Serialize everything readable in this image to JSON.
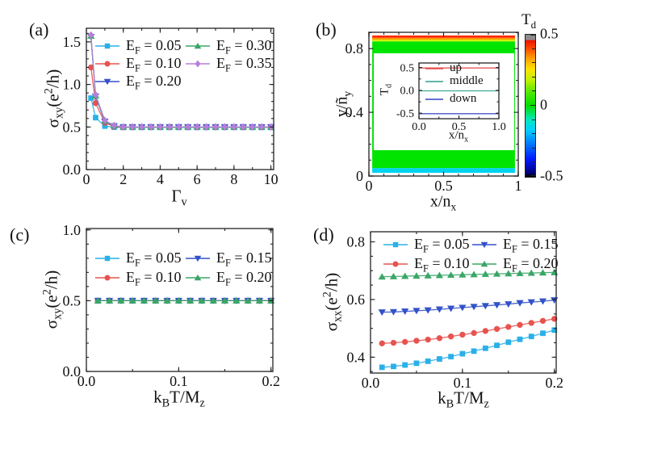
{
  "figure": {
    "background": "#ffffff",
    "panels": [
      {
        "id": "a",
        "letter": "(a)"
      },
      {
        "id": "b",
        "letter": "(b)"
      },
      {
        "id": "c",
        "letter": "(c)"
      },
      {
        "id": "d",
        "letter": "(d)"
      }
    ]
  },
  "chart_data": [
    {
      "id": "a",
      "type": "line",
      "xlabel": "Γ_{v}",
      "ylabel": "σ_{xy}(e^{2}/h)",
      "xlim": [
        0,
        10.15
      ],
      "ylim": [
        0,
        1.66
      ],
      "xticks": {
        "major": [
          0,
          2,
          4,
          6,
          8,
          10
        ],
        "labels": [
          "0",
          "2",
          "4",
          "6",
          "8",
          "10"
        ],
        "minor_step": 1
      },
      "yticks": {
        "major": [
          0,
          0.5,
          1.0,
          1.5
        ],
        "labels": [
          "0.0",
          "0.5",
          "1.0",
          "1.5"
        ],
        "minor_step": 0.1
      },
      "x": [
        0.25,
        0.5,
        1,
        1.5,
        2,
        2.5,
        3,
        3.5,
        4,
        4.5,
        5,
        5.5,
        6,
        6.5,
        7,
        7.5,
        8,
        8.5,
        9,
        9.5,
        10
      ],
      "series": [
        {
          "label": "E_{F} = 0.05",
          "color": "#2ab0e8",
          "marker": "square",
          "values": [
            0.84,
            0.61,
            0.51,
            0.497,
            0.495,
            0.495,
            0.495,
            0.495,
            0.495,
            0.495,
            0.495,
            0.495,
            0.495,
            0.495,
            0.495,
            0.495,
            0.495,
            0.495,
            0.495,
            0.495,
            0.495
          ]
        },
        {
          "label": "E_{F} = 0.10",
          "color": "#e8534f",
          "marker": "circle",
          "values": [
            1.2,
            0.78,
            0.55,
            0.505,
            0.498,
            0.498,
            0.498,
            0.498,
            0.498,
            0.498,
            0.498,
            0.498,
            0.498,
            0.498,
            0.498,
            0.498,
            0.498,
            0.498,
            0.498,
            0.498,
            0.498
          ]
        },
        {
          "label": "E_{F} = 0.20",
          "color": "#3352c8",
          "marker": "tridown",
          "values": [
            1.56,
            0.86,
            0.565,
            0.512,
            0.5,
            0.5,
            0.5,
            0.5,
            0.5,
            0.5,
            0.5,
            0.5,
            0.5,
            0.5,
            0.5,
            0.5,
            0.5,
            0.5,
            0.5,
            0.5,
            0.5
          ]
        },
        {
          "label": "E_{F} = 0.30",
          "color": "#3aa667",
          "marker": "triup",
          "values": [
            1.57,
            0.87,
            0.572,
            0.515,
            0.501,
            0.501,
            0.501,
            0.501,
            0.501,
            0.501,
            0.501,
            0.501,
            0.501,
            0.501,
            0.501,
            0.501,
            0.501,
            0.501,
            0.501,
            0.501,
            0.501
          ]
        },
        {
          "label": "E_{F} = 0.35",
          "color": "#b77fd9",
          "marker": "diamond",
          "values": [
            1.58,
            0.88,
            0.578,
            0.518,
            0.502,
            0.502,
            0.502,
            0.502,
            0.502,
            0.502,
            0.502,
            0.502,
            0.502,
            0.502,
            0.502,
            0.502,
            0.502,
            0.502,
            0.502,
            0.502,
            0.502
          ]
        }
      ],
      "legend_position": "top-inside, two columns"
    },
    {
      "id": "b",
      "type": "heatmap",
      "xlabel": "x/n_{x}",
      "ylabel": "y/ñ_{y}",
      "xlim": [
        0,
        1
      ],
      "ylim": [
        0,
        0.902
      ],
      "xticks": {
        "major": [
          0,
          0.5,
          1
        ],
        "labels": [
          "0",
          "0.5",
          "1"
        ],
        "minor_step": 0.1
      },
      "yticks": {
        "major": [
          0,
          0.4,
          0.8
        ],
        "labels": [
          "0",
          "0.4",
          "0.8"
        ],
        "minor_step": 0.1
      },
      "stripes_x_range": [
        0.022,
        0.978
      ],
      "stripes": [
        {
          "y0": 0.02,
          "y1": 0.05,
          "color": "#00d2f0",
          "meaning": "down edge state, Td ≈ -0.25"
        },
        {
          "y0": 0.05,
          "y1": 0.845,
          "color": "#00e400",
          "meaning": "bulk, Td ≈ 0"
        },
        {
          "y0": 0.845,
          "y1": 0.856,
          "color": "#d0f000",
          "meaning": ""
        },
        {
          "y0": 0.856,
          "y1": 0.868,
          "color": "#ff9800",
          "meaning": ""
        },
        {
          "y0": 0.868,
          "y1": 0.882,
          "color": "#ff2800",
          "meaning": "up edge state, Td ≈ 0.5"
        }
      ],
      "colorbar": {
        "title": "T_{d}",
        "lim": [
          -0.5,
          0.5
        ],
        "ticks": [
          {
            "v": 0.5,
            "label": "0.5"
          },
          {
            "v": 0,
            "label": "0"
          },
          {
            "v": -0.5,
            "label": "-0.5"
          }
        ],
        "minor_step": 0.1,
        "gradient": [
          {
            "pos": 0.0,
            "color": "#000000"
          },
          {
            "pos": 0.03,
            "color": "#00007e"
          },
          {
            "pos": 0.12,
            "color": "#0018ff"
          },
          {
            "pos": 0.24,
            "color": "#0080ff"
          },
          {
            "pos": 0.33,
            "color": "#00d0ff"
          },
          {
            "pos": 0.4,
            "color": "#00e8c0"
          },
          {
            "pos": 0.5,
            "color": "#00dd00"
          },
          {
            "pos": 0.6,
            "color": "#58e800"
          },
          {
            "pos": 0.68,
            "color": "#c0f000"
          },
          {
            "pos": 0.76,
            "color": "#ffe000"
          },
          {
            "pos": 0.84,
            "color": "#ff9800"
          },
          {
            "pos": 0.91,
            "color": "#ff4000"
          },
          {
            "pos": 0.96,
            "color": "#e81400"
          },
          {
            "pos": 0.965,
            "color": "#8c8c8c"
          },
          {
            "pos": 1.0,
            "color": "#8c8c8c"
          }
        ]
      },
      "inset": {
        "type": "line",
        "xlabel": "x/n_{x}",
        "ylabel": "T_{d}",
        "xlim": [
          0,
          1
        ],
        "ylim": [
          -0.62,
          0.6
        ],
        "xticks": {
          "major": [
            0,
            0.5,
            1
          ],
          "labels": [
            "0.0",
            "0.5",
            "1.0"
          ],
          "minor_step": 0.25
        },
        "yticks": {
          "major": [
            -0.5,
            0,
            0.5
          ],
          "labels": [
            "-0.5",
            "0.0",
            "0.5"
          ],
          "minor_step": 0.25
        },
        "series": [
          {
            "label": "up",
            "color": "#e04545",
            "marker": "none",
            "const_y": 0.49
          },
          {
            "label": "middle",
            "color": "#2f9e8b",
            "marker": "none",
            "const_y": -0.01
          },
          {
            "label": "down",
            "color": "#3342c2",
            "marker": "none",
            "const_y": -0.51
          }
        ]
      }
    },
    {
      "id": "c",
      "type": "line",
      "xlabel": "k_{B}T/M_{z}",
      "ylabel": "σ_{xy}(e^{2}/h)",
      "xlim": [
        0,
        0.202
      ],
      "ylim": [
        0,
        1.01
      ],
      "xticks": {
        "major": [
          0,
          0.1,
          0.2
        ],
        "labels": [
          "0.0",
          "0.1",
          "0.2"
        ],
        "minor_step": 0.05
      },
      "yticks": {
        "major": [
          0,
          0.5,
          1.0
        ],
        "labels": [
          "0.0",
          "0.5",
          "1.0"
        ],
        "minor_step": 0.1
      },
      "x": [
        0.0125,
        0.025,
        0.0375,
        0.05,
        0.0625,
        0.075,
        0.0875,
        0.1,
        0.1125,
        0.125,
        0.1375,
        0.15,
        0.1625,
        0.175,
        0.1875,
        0.2
      ],
      "series": [
        {
          "label": "E_{F} = 0.05",
          "color": "#2ab0e8",
          "marker": "square",
          "values": [
            0.5,
            0.5,
            0.5,
            0.5,
            0.5,
            0.5,
            0.5,
            0.5,
            0.5,
            0.5,
            0.5,
            0.5,
            0.5,
            0.5,
            0.5,
            0.5
          ]
        },
        {
          "label": "E_{F} = 0.10",
          "color": "#e8534f",
          "marker": "circle",
          "values": [
            0.5,
            0.5,
            0.5,
            0.5,
            0.5,
            0.5,
            0.5,
            0.5,
            0.5,
            0.5,
            0.5,
            0.5,
            0.5,
            0.5,
            0.5,
            0.5
          ]
        },
        {
          "label": "E_{F} = 0.15",
          "color": "#3352c8",
          "marker": "tridown",
          "values": [
            0.5,
            0.5,
            0.5,
            0.5,
            0.5,
            0.5,
            0.5,
            0.5,
            0.5,
            0.5,
            0.5,
            0.5,
            0.5,
            0.5,
            0.5,
            0.5
          ]
        },
        {
          "label": "E_{F} = 0.20",
          "color": "#3aa667",
          "marker": "triup",
          "values": [
            0.5,
            0.5,
            0.5,
            0.5,
            0.5,
            0.5,
            0.5,
            0.5,
            0.5,
            0.5,
            0.5,
            0.5,
            0.5,
            0.5,
            0.5,
            0.5
          ]
        }
      ],
      "legend_position": "top-inside, two columns"
    },
    {
      "id": "d",
      "type": "line",
      "xlabel": "k_{B}T/M_{z}",
      "ylabel": "σ_{xx}(e^{2}/h)",
      "xlim": [
        0,
        0.202
      ],
      "ylim": [
        0.345,
        0.835
      ],
      "xticks": {
        "major": [
          0,
          0.1,
          0.2
        ],
        "labels": [
          "0.0",
          "0.1",
          "0.2"
        ],
        "minor_step": 0.05
      },
      "yticks": {
        "major": [
          0.4,
          0.6,
          0.8
        ],
        "labels": [
          "0.4",
          "0.6",
          "0.8"
        ],
        "minor_step": 0.05
      },
      "x": [
        0.0125,
        0.025,
        0.0375,
        0.05,
        0.0625,
        0.075,
        0.0875,
        0.1,
        0.1125,
        0.125,
        0.1375,
        0.15,
        0.1625,
        0.175,
        0.1875,
        0.2
      ],
      "series": [
        {
          "label": "E_{F} = 0.05",
          "color": "#2ab0e8",
          "marker": "square",
          "values": [
            0.365,
            0.368,
            0.373,
            0.379,
            0.386,
            0.394,
            0.402,
            0.412,
            0.421,
            0.431,
            0.441,
            0.452,
            0.462,
            0.472,
            0.483,
            0.494
          ]
        },
        {
          "label": "E_{F} = 0.10",
          "color": "#e8534f",
          "marker": "circle",
          "values": [
            0.448,
            0.45,
            0.453,
            0.457,
            0.461,
            0.466,
            0.472,
            0.478,
            0.484,
            0.491,
            0.498,
            0.505,
            0.512,
            0.519,
            0.526,
            0.533
          ]
        },
        {
          "label": "E_{F} = 0.15",
          "color": "#3352c8",
          "marker": "tridown",
          "values": [
            0.556,
            0.557,
            0.559,
            0.561,
            0.563,
            0.566,
            0.569,
            0.572,
            0.575,
            0.578,
            0.581,
            0.584,
            0.588,
            0.591,
            0.594,
            0.598
          ]
        },
        {
          "label": "E_{F} = 0.20",
          "color": "#3aa667",
          "marker": "triup",
          "values": [
            0.679,
            0.68,
            0.681,
            0.682,
            0.683,
            0.684,
            0.685,
            0.686,
            0.687,
            0.688,
            0.689,
            0.69,
            0.691,
            0.692,
            0.693,
            0.694
          ]
        }
      ],
      "legend_position": "top-inside, two columns"
    }
  ]
}
